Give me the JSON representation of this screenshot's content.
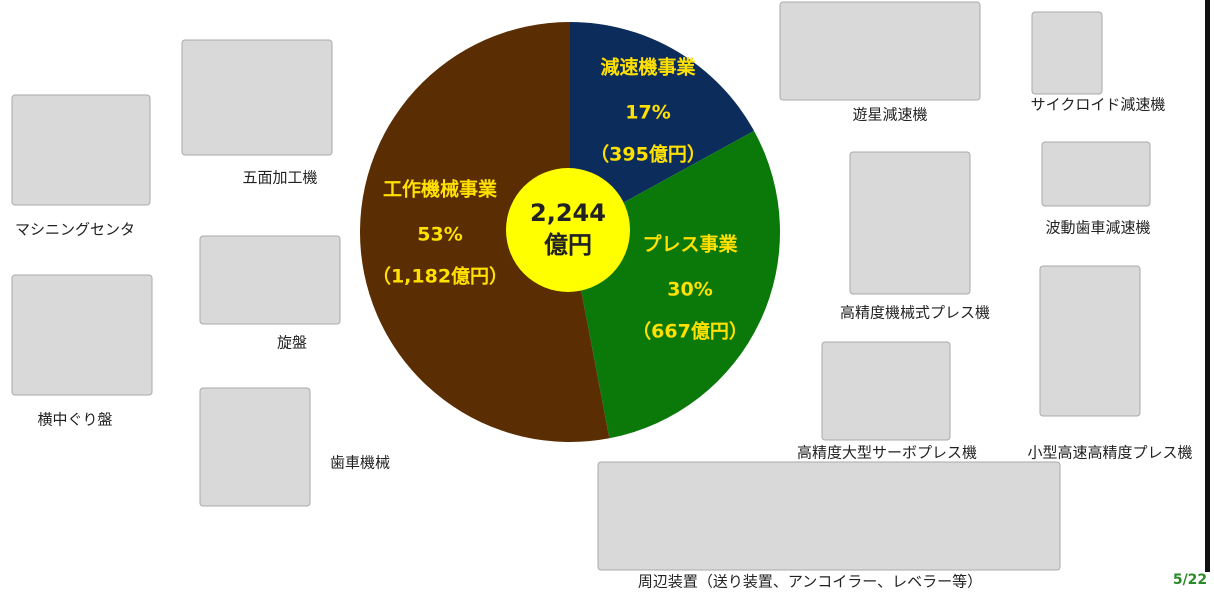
{
  "chart_data": {
    "type": "pie",
    "categories": [
      "減速機事業",
      "プレス事業",
      "工作機械事業"
    ],
    "values": [
      17,
      30,
      53
    ],
    "value_labels": [
      "17%",
      "30%",
      "53%"
    ],
    "amounts": [
      {
        "value": 395,
        "label": "（395億円）"
      },
      {
        "value": 667,
        "label": "（667億円）"
      },
      {
        "value": 1182,
        "label": "（1,182億円）"
      }
    ],
    "colors": [
      "#0c2d5c",
      "#0a790a",
      "#5a2d02"
    ],
    "total": {
      "value": 2244,
      "label": "2,244"
    },
    "total_unit": "億円"
  },
  "products": [
    "マシニングセンタ",
    "五面加工機",
    "旋盤",
    "横中ぐり盤",
    "歯車機械",
    "遊星減速機",
    "サイクロイド減速機",
    "波動歯車減速機",
    "高精度機械式プレス機",
    "高精度大型サーボプレス機",
    "小型高速高精度プレス機",
    "周辺装置（送り装置、アンコイラー、レベラー等）"
  ],
  "page_number": "5/22"
}
